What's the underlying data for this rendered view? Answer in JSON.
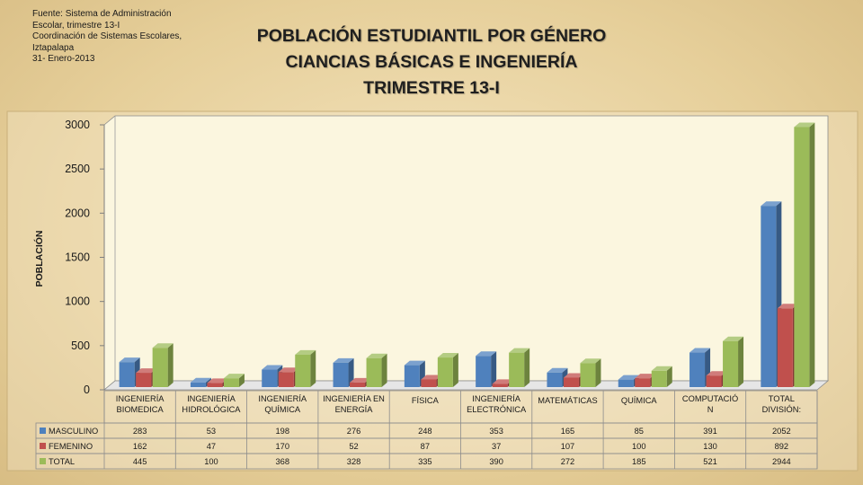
{
  "source": {
    "lines": [
      "Fuente: Sistema de Administración",
      "Escolar, trimestre 13-I",
      "Coordinación de Sistemas Escolares,",
      "Iztapalapa",
      "31- Enero-2013"
    ]
  },
  "chart_data": {
    "type": "bar",
    "title": [
      "POBLACIÓN ESTUDIANTIL POR GÉNERO",
      "CIANCIAS BÁSICAS E INGENIERÍA",
      "TRIMESTRE 13-I"
    ],
    "ylabel": "POBLACIÓN",
    "ylim": [
      0,
      3000
    ],
    "yticks": [
      0,
      500,
      1000,
      1500,
      2000,
      2500,
      3000
    ],
    "categories": [
      [
        "INGENIERÍA",
        "BIOMEDICA"
      ],
      [
        "INGENIERÍA",
        "HIDROLÓGICA"
      ],
      [
        "INGENIERÍA",
        "QUÍMICA"
      ],
      [
        "INGENIERÍA EN",
        "ENERGÍA"
      ],
      [
        "FÍSICA"
      ],
      [
        "INGENIERÍA",
        "ELECTRÓNICA"
      ],
      [
        "MATEMÁTICAS"
      ],
      [
        "QUÍMICA"
      ],
      [
        "COMPUTACIÓ",
        "N"
      ],
      [
        "TOTAL",
        "DIVISIÓN:"
      ]
    ],
    "series": [
      {
        "name": "MASCULINO",
        "color": "#4f81bd",
        "values": [
          283,
          53,
          198,
          276,
          248,
          353,
          165,
          85,
          391,
          2052
        ]
      },
      {
        "name": "FEMENINO",
        "color": "#c0504d",
        "values": [
          162,
          47,
          170,
          52,
          87,
          37,
          107,
          100,
          130,
          892
        ]
      },
      {
        "name": "TOTAL",
        "color": "#9bbb59",
        "values": [
          445,
          100,
          368,
          328,
          335,
          390,
          272,
          185,
          521,
          2944
        ]
      }
    ],
    "legend": "data-table-left",
    "grid": false
  }
}
